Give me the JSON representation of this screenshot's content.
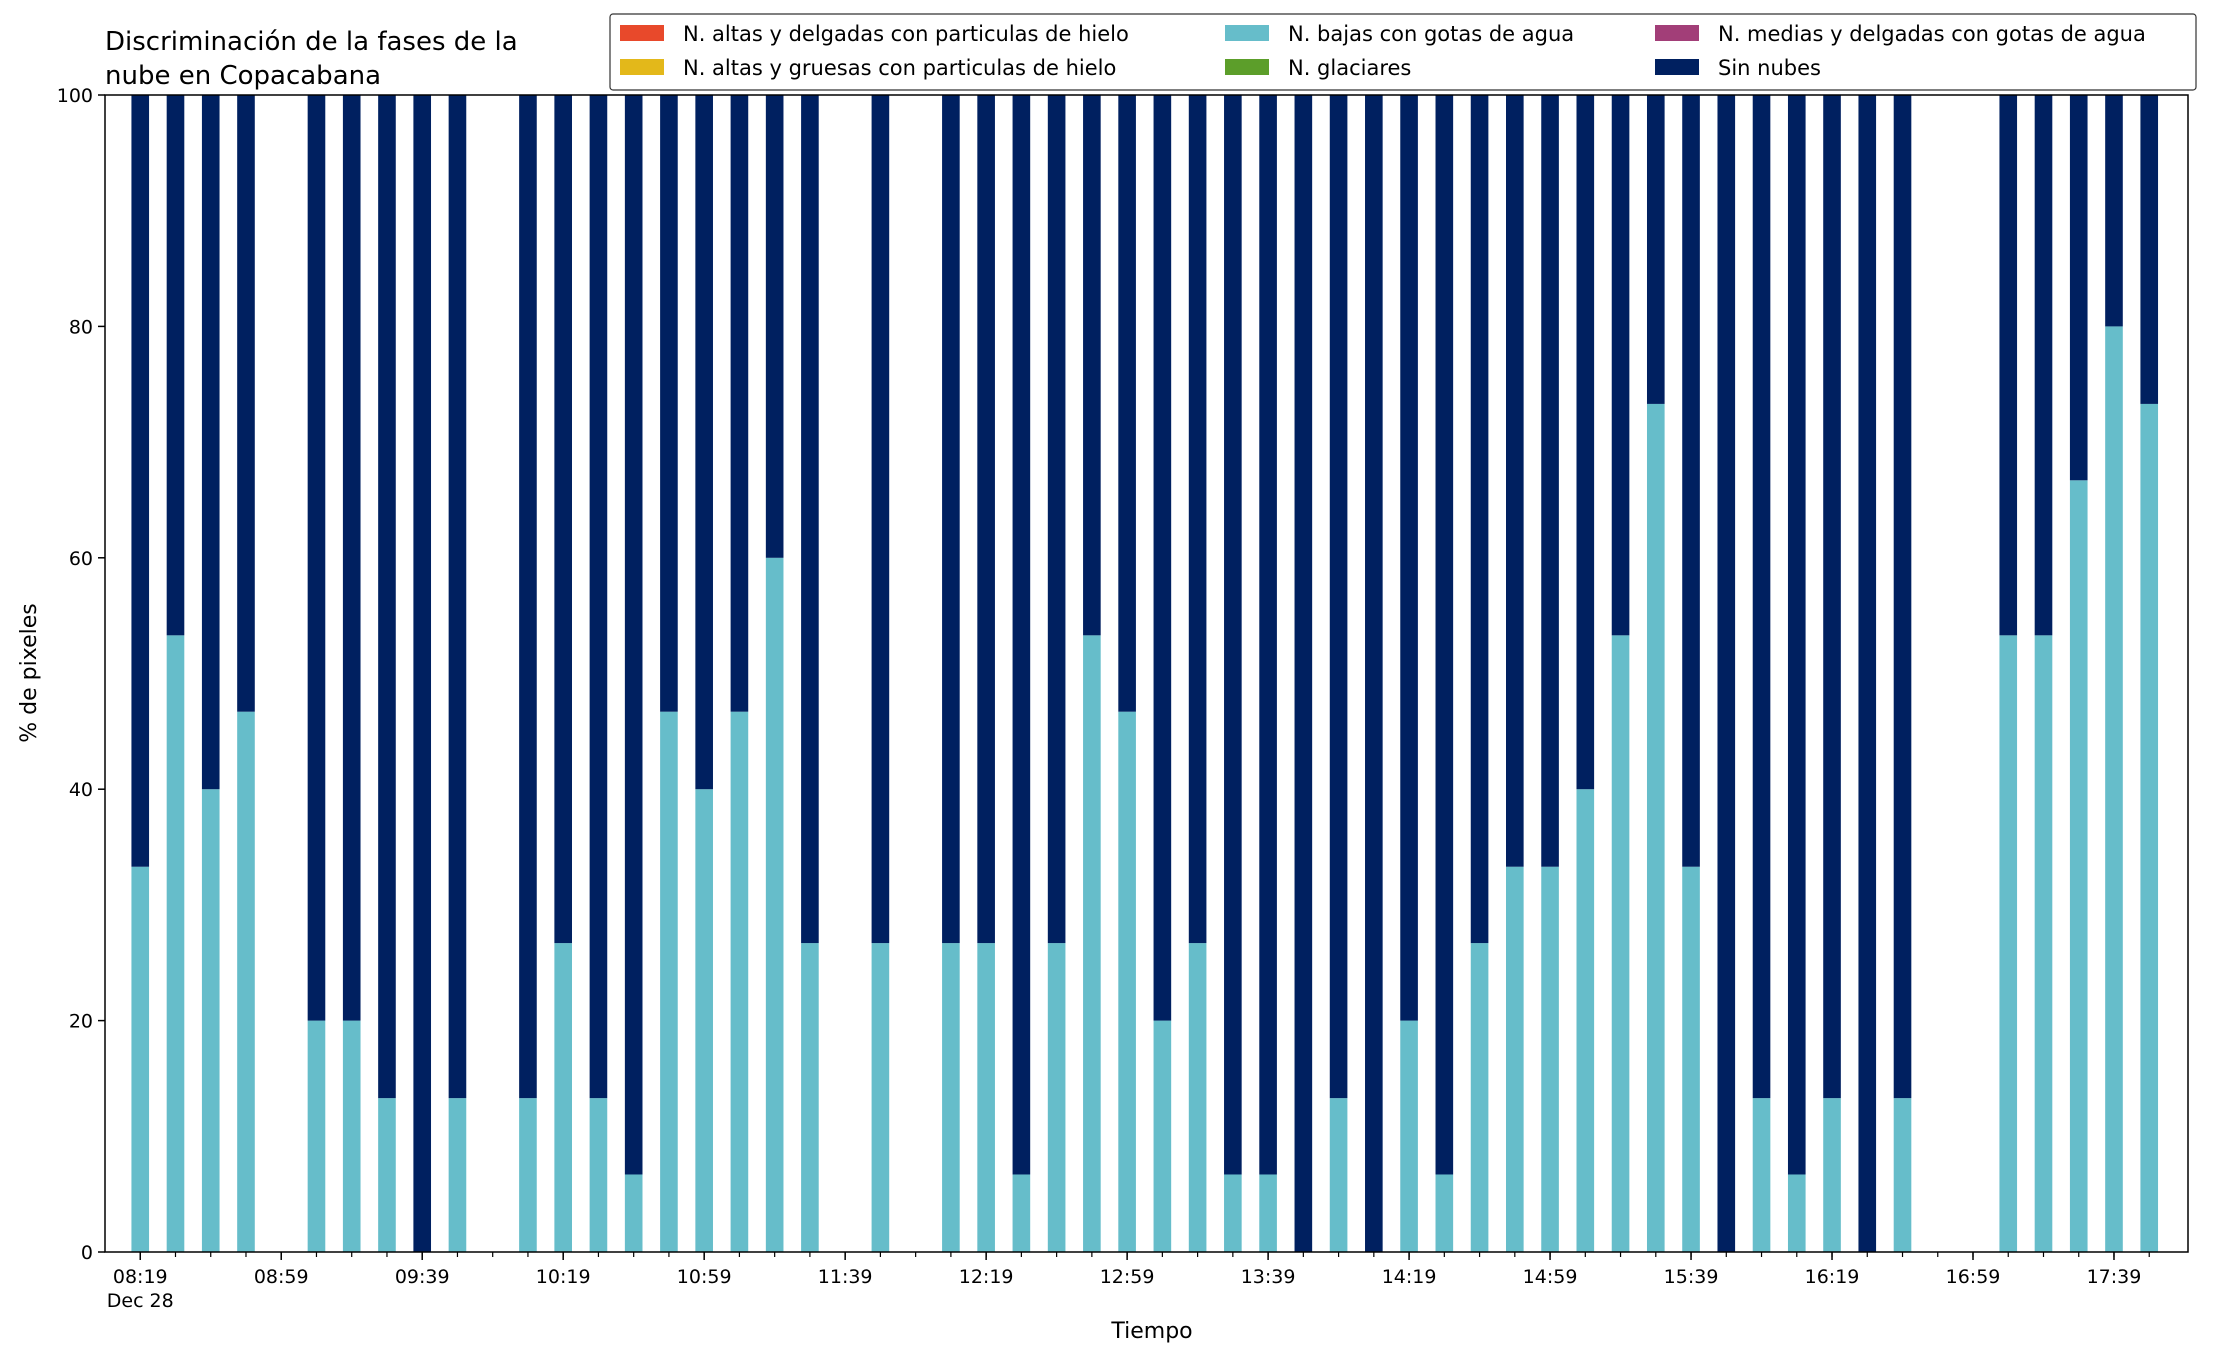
{
  "chart_data": {
    "type": "bar",
    "stacked": true,
    "title_lines": [
      "Discriminación de la fases de la",
      "nube en Copacabana"
    ],
    "xlabel": "Tiempo",
    "ylabel": "% de pixeles",
    "ylim": [
      0,
      100
    ],
    "yticks": [
      0,
      20,
      40,
      60,
      80,
      100
    ],
    "grid": false,
    "legend_position": "top-right",
    "x_start": "08:19",
    "x_end": "17:49",
    "x_step_minutes": 10,
    "x_tick_labels": [
      "08:19",
      "08:59",
      "09:39",
      "10:19",
      "10:59",
      "11:39",
      "12:19",
      "12:59",
      "13:39",
      "14:19",
      "14:59",
      "15:39",
      "16:19",
      "16:59",
      "17:39"
    ],
    "x_date_label": "Dec 28",
    "series": [
      {
        "name": "N. altas y delgadas con particulas de hielo",
        "color": "#e8492b"
      },
      {
        "name": "N. altas y gruesas con particulas de hielo",
        "color": "#e3b81a"
      },
      {
        "name": "N. medias y delgadas con gotas de agua",
        "color": "#a23e78"
      },
      {
        "name": "N. bajas con gotas de agua",
        "color": "#66bdca"
      },
      {
        "name": "N. glaciares",
        "color": "#5c9e2a"
      },
      {
        "name": "Sin nubes",
        "color": "#002060"
      }
    ],
    "categories": [
      "08:19",
      "08:29",
      "08:39",
      "08:49",
      "09:09",
      "09:19",
      "09:29",
      "09:39",
      "09:49",
      "10:09",
      "10:19",
      "10:29",
      "10:39",
      "10:49",
      "10:59",
      "11:09",
      "11:19",
      "11:29",
      "11:49",
      "12:09",
      "12:19",
      "12:29",
      "12:39",
      "12:49",
      "12:59",
      "13:09",
      "13:19",
      "13:29",
      "13:39",
      "13:49",
      "13:59",
      "14:09",
      "14:19",
      "14:29",
      "14:39",
      "14:49",
      "14:59",
      "15:09",
      "15:19",
      "15:29",
      "15:39",
      "15:49",
      "15:59",
      "16:09",
      "16:19",
      "16:29",
      "16:39",
      "17:09",
      "17:19",
      "17:29",
      "17:39",
      "17:49"
    ],
    "values_bajas": [
      33.3,
      53.3,
      40,
      46.7,
      20,
      20,
      13.3,
      0,
      13.3,
      13.3,
      26.7,
      13.3,
      6.7,
      46.7,
      40,
      46.7,
      60,
      26.7,
      26.7,
      26.7,
      26.7,
      6.7,
      26.7,
      53.3,
      46.7,
      20,
      26.7,
      6.7,
      6.7,
      0,
      13.3,
      0,
      20,
      6.7,
      26.7,
      33.3,
      33.3,
      40,
      53.3,
      73.3,
      33.3,
      0,
      13.3,
      6.7,
      13.3,
      0,
      13.3,
      53.3,
      53.3,
      66.7,
      80,
      73.3
    ],
    "values_sin_nubes": [
      66.7,
      46.7,
      60,
      53.3,
      80,
      80,
      86.7,
      100,
      86.7,
      86.7,
      73.3,
      86.7,
      93.3,
      53.3,
      60,
      53.3,
      40,
      73.3,
      73.3,
      73.3,
      73.3,
      93.3,
      73.3,
      46.7,
      53.3,
      80,
      73.3,
      93.3,
      93.3,
      100,
      86.7,
      100,
      80,
      93.3,
      73.3,
      66.7,
      66.7,
      60,
      46.7,
      26.7,
      66.7,
      100,
      86.7,
      93.3,
      86.7,
      100,
      86.7,
      46.7,
      46.7,
      33.3,
      20,
      26.7
    ]
  }
}
